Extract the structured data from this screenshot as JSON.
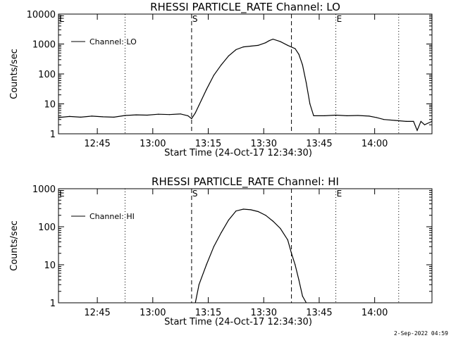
{
  "chart_data": [
    {
      "type": "line",
      "title": "RHESSI PARTICLE_RATE Channel: LO",
      "xlabel": "Start Time (24-Oct-17 12:34:30)",
      "ylabel": "Counts/sec",
      "yscale": "log",
      "ylim": [
        1,
        10000
      ],
      "y_ticks": [
        "1",
        "10",
        "100",
        "1000",
        "10000"
      ],
      "x_range_minutes_from_start": [
        0,
        101
      ],
      "x_ticks": [
        "12:45",
        "13:00",
        "13:15",
        "13:30",
        "13:45",
        "14:00"
      ],
      "legend": {
        "entries": [
          "Channel: LO"
        ],
        "position": "top-left"
      },
      "markers": [
        {
          "label": "E",
          "time": "12:34:30",
          "style": "dotted"
        },
        {
          "label": "",
          "time": "12:52:30",
          "style": "dotted"
        },
        {
          "label": "S",
          "time": "13:10:30",
          "style": "dashed"
        },
        {
          "label": "",
          "time": "13:37:30",
          "style": "dashed"
        },
        {
          "label": "E",
          "time": "13:49:30",
          "style": "dotted"
        },
        {
          "label": "",
          "time": "14:06:30",
          "style": "dotted"
        }
      ],
      "series": [
        {
          "name": "Channel: LO",
          "points": [
            [
              0,
              3.5
            ],
            [
              3,
              3.8
            ],
            [
              6,
              3.6
            ],
            [
              9,
              3.9
            ],
            [
              12,
              3.7
            ],
            [
              15,
              3.6
            ],
            [
              18,
              4.1
            ],
            [
              21,
              4.3
            ],
            [
              24,
              4.2
            ],
            [
              27,
              4.5
            ],
            [
              30,
              4.4
            ],
            [
              33,
              4.6
            ],
            [
              35,
              4.0
            ],
            [
              36,
              3.2
            ],
            [
              37,
              5.0
            ],
            [
              38,
              9.0
            ],
            [
              40,
              30
            ],
            [
              42,
              90
            ],
            [
              44,
              200
            ],
            [
              46,
              400
            ],
            [
              48,
              650
            ],
            [
              50,
              800
            ],
            [
              52,
              850
            ],
            [
              54,
              900
            ],
            [
              56,
              1100
            ],
            [
              57,
              1300
            ],
            [
              58,
              1450
            ],
            [
              60,
              1200
            ],
            [
              62,
              900
            ],
            [
              64,
              700
            ],
            [
              65,
              450
            ],
            [
              66,
              200
            ],
            [
              67,
              50
            ],
            [
              68,
              10
            ],
            [
              69,
              4.0
            ],
            [
              72,
              4.0
            ],
            [
              75,
              4.2
            ],
            [
              78,
              4.0
            ],
            [
              81,
              4.1
            ],
            [
              84,
              3.9
            ],
            [
              86,
              3.5
            ],
            [
              88,
              3.0
            ],
            [
              91,
              2.8
            ],
            [
              94,
              2.6
            ],
            [
              96,
              2.6
            ],
            [
              97,
              1.3
            ],
            [
              98,
              2.6
            ],
            [
              99,
              2.0
            ],
            [
              101,
              2.6
            ]
          ]
        }
      ],
      "grid": false
    },
    {
      "type": "line",
      "title": "RHESSI PARTICLE_RATE Channel: HI",
      "xlabel": "Start Time (24-Oct-17 12:34:30)",
      "ylabel": "Counts/sec",
      "yscale": "log",
      "ylim": [
        1,
        1000
      ],
      "y_ticks": [
        "1",
        "10",
        "100",
        "1000"
      ],
      "x_range_minutes_from_start": [
        0,
        101
      ],
      "x_ticks": [
        "12:45",
        "13:00",
        "13:15",
        "13:30",
        "13:45",
        "14:00"
      ],
      "legend": {
        "entries": [
          "Channel: HI"
        ],
        "position": "top-left"
      },
      "markers": [
        {
          "label": "E",
          "time": "12:34:30",
          "style": "dotted"
        },
        {
          "label": "",
          "time": "12:52:30",
          "style": "dotted"
        },
        {
          "label": "S",
          "time": "13:10:30",
          "style": "dashed"
        },
        {
          "label": "",
          "time": "13:37:30",
          "style": "dashed"
        },
        {
          "label": "E",
          "time": "13:49:30",
          "style": "dotted"
        },
        {
          "label": "",
          "time": "14:06:30",
          "style": "dotted"
        }
      ],
      "series": [
        {
          "name": "Channel: HI",
          "points": [
            [
              37,
              1.0
            ],
            [
              38,
              3.0
            ],
            [
              40,
              10
            ],
            [
              42,
              30
            ],
            [
              44,
              70
            ],
            [
              46,
              150
            ],
            [
              48,
              260
            ],
            [
              50,
              290
            ],
            [
              52,
              280
            ],
            [
              54,
              250
            ],
            [
              56,
              200
            ],
            [
              58,
              140
            ],
            [
              60,
              90
            ],
            [
              62,
              45
            ],
            [
              63,
              20
            ],
            [
              64,
              10
            ],
            [
              65,
              4.0
            ],
            [
              66,
              1.5
            ],
            [
              67,
              1.0
            ]
          ]
        }
      ],
      "grid": false
    }
  ],
  "footer": {
    "timestamp": "2-Sep-2022 04:59"
  }
}
